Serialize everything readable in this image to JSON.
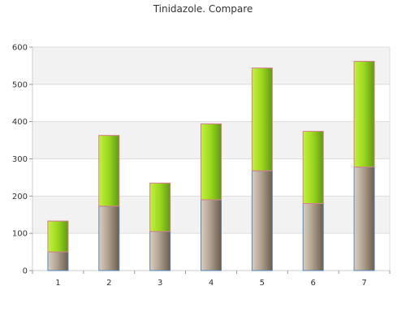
{
  "chart_data": {
    "type": "bar",
    "stacked": true,
    "title": "Tinidazole. Compare",
    "xlabel": "",
    "ylabel": "",
    "categories": [
      "1",
      "2",
      "3",
      "4",
      "5",
      "6",
      "7"
    ],
    "series": [
      {
        "name": "",
        "color": "#8c7a64",
        "values": [
          50,
          173,
          105,
          190,
          268,
          180,
          278
        ]
      },
      {
        "name": "",
        "color": "#9ade1f",
        "values": [
          83,
          190,
          130,
          204,
          276,
          194,
          284
        ]
      }
    ],
    "ylim": [
      0,
      600
    ],
    "yticks": [
      0,
      100,
      200,
      300,
      400,
      500,
      600
    ],
    "grid": true,
    "legend": "none"
  }
}
